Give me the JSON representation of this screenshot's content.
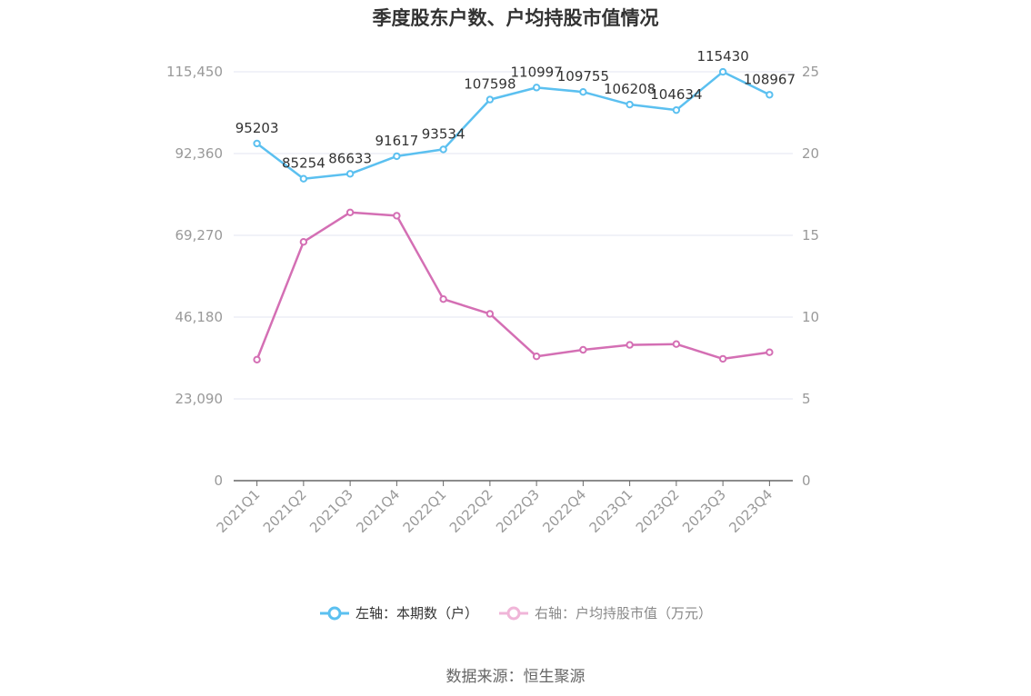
{
  "chart_data": {
    "type": "line",
    "title": "季度股东户数、户均持股市值情况",
    "categories": [
      "2021Q1",
      "2021Q2",
      "2021Q3",
      "2021Q4",
      "2022Q1",
      "2022Q2",
      "2022Q3",
      "2022Q4",
      "2023Q1",
      "2023Q2",
      "2023Q3",
      "2023Q4"
    ],
    "y_left": {
      "ylim": [
        0,
        115450
      ],
      "ticks": [
        "0",
        "23,090",
        "46,180",
        "69,270",
        "92,360",
        "115,450"
      ]
    },
    "y_right": {
      "ylim": [
        0,
        25
      ],
      "ticks": [
        "0",
        "5",
        "10",
        "15",
        "20",
        "25"
      ]
    },
    "grid": true,
    "legend_position": "bottom",
    "series": [
      {
        "name": "左轴：本期数（户）",
        "axis": "left",
        "color": "#5bc0f0",
        "values": [
          95203,
          85254,
          86633,
          91617,
          93534,
          107598,
          110997,
          109755,
          106208,
          104634,
          115430,
          108967
        ],
        "labels": [
          "95203",
          "85254",
          "86633",
          "91617",
          "93534",
          "107598",
          "110997",
          "109755",
          "106208",
          "104634",
          "115430",
          "108967"
        ]
      },
      {
        "name": "右轴：户均持股市值（万元）",
        "axis": "right",
        "color": "#d46fb4",
        "values": [
          7.4,
          14.6,
          16.4,
          16.2,
          11.1,
          10.2,
          7.6,
          8.0,
          8.3,
          8.35,
          7.45,
          7.85
        ]
      }
    ]
  },
  "legend": {
    "left_label": "左轴：本期数（户）",
    "right_label": "右轴：户均持股市值（万元）"
  },
  "source": "数据来源：恒生聚源"
}
